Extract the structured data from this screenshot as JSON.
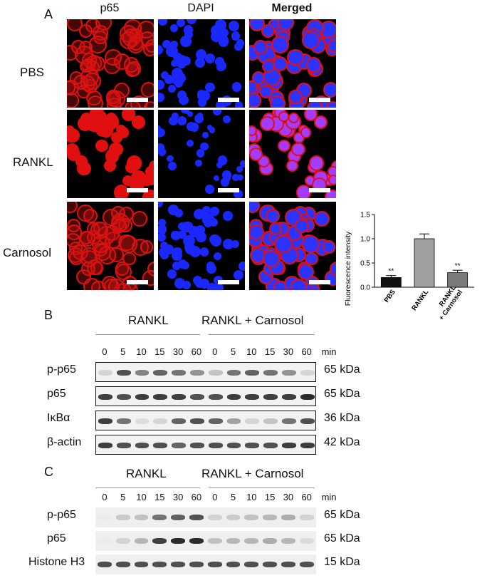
{
  "panel_a": {
    "letter": "A",
    "columns": [
      "p65",
      "DAPI",
      "Merged"
    ],
    "rows": [
      "PBS",
      "RANKL",
      "Carnosol"
    ],
    "stain_colors": {
      "p65": "#e01010",
      "DAPI": "#1a28ff",
      "Merged": "#a43cff"
    }
  },
  "chart_data": {
    "type": "bar",
    "categories": [
      "PBS",
      "RANKL",
      "RANKL\n+ Carnosol"
    ],
    "values": [
      0.2,
      1.0,
      0.3
    ],
    "errors": [
      0.04,
      0.1,
      0.05
    ],
    "significance": [
      "**",
      "",
      "**"
    ],
    "bar_colors": [
      "#111111",
      "#a0a0a0",
      "#7a7a7a"
    ],
    "ylabel": "Fluorescence intensity",
    "ylim": [
      0,
      1.5
    ],
    "yticks": [
      "0.0",
      "0.5",
      "1.0",
      "1.5"
    ],
    "grid": false
  },
  "panel_b": {
    "letter": "B",
    "groups": [
      "RANKL",
      "RANKL + Carnosol"
    ],
    "times": [
      "0",
      "5",
      "10",
      "15",
      "30",
      "60",
      "0",
      "5",
      "10",
      "15",
      "30",
      "60"
    ],
    "time_unit": "min",
    "blots": [
      {
        "label": "p-p65",
        "kda": "65 kDa",
        "intensity": [
          0.35,
          0.85,
          0.7,
          0.8,
          0.75,
          0.65,
          0.45,
          0.75,
          0.8,
          0.75,
          0.65,
          0.35
        ]
      },
      {
        "label": "p65",
        "kda": "65 kDa",
        "intensity": [
          0.9,
          0.85,
          0.9,
          0.9,
          0.9,
          0.85,
          0.85,
          0.9,
          0.9,
          0.9,
          0.9,
          0.95
        ]
      },
      {
        "label": "IκBα",
        "kda": "36 kDa",
        "intensity": [
          0.9,
          0.75,
          0.3,
          0.35,
          0.8,
          0.85,
          0.8,
          0.6,
          0.35,
          0.45,
          0.75,
          0.85
        ]
      },
      {
        "label": "β-actin",
        "kda": "42 kDa",
        "intensity": [
          0.9,
          0.85,
          0.85,
          0.85,
          0.8,
          0.85,
          0.85,
          0.85,
          0.85,
          0.85,
          0.9,
          0.9
        ]
      }
    ]
  },
  "panel_c": {
    "letter": "C",
    "groups": [
      "RANKL",
      "RANKL + Carnosol"
    ],
    "times": [
      "0",
      "5",
      "10",
      "15",
      "30",
      "60",
      "0",
      "5",
      "10",
      "15",
      "30",
      "60"
    ],
    "time_unit": "min",
    "blots": [
      {
        "label": "p-p65",
        "kda": "65 kDa",
        "intensity": [
          0.1,
          0.4,
          0.45,
          0.75,
          0.8,
          0.85,
          0.35,
          0.4,
          0.45,
          0.5,
          0.55,
          0.35
        ]
      },
      {
        "label": "p65",
        "kda": "65 kDa",
        "intensity": [
          0.1,
          0.35,
          0.5,
          0.9,
          0.95,
          0.95,
          0.45,
          0.5,
          0.5,
          0.55,
          0.5,
          0.3
        ]
      },
      {
        "label": "Histone H3",
        "kda": "15 kDa",
        "intensity": [
          0.85,
          0.85,
          0.85,
          0.85,
          0.85,
          0.85,
          0.85,
          0.85,
          0.85,
          0.85,
          0.85,
          0.85
        ]
      }
    ]
  }
}
